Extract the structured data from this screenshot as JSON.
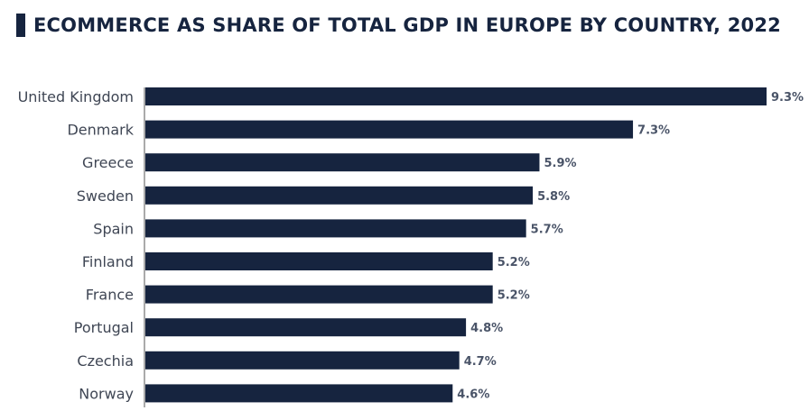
{
  "chart_data": {
    "type": "bar",
    "orientation": "horizontal",
    "title": "ECOMMERCE AS SHARE OF TOTAL GDP IN EUROPE BY COUNTRY, 2022",
    "categories": [
      "United Kingdom",
      "Denmark",
      "Greece",
      "Sweden",
      "Spain",
      "Finland",
      "France",
      "Portugal",
      "Czechia",
      "Norway"
    ],
    "values": [
      9.3,
      7.3,
      5.9,
      5.8,
      5.7,
      5.2,
      5.2,
      4.8,
      4.7,
      4.6
    ],
    "value_labels": [
      "9.3%",
      "7.3%",
      "5.9%",
      "5.8%",
      "5.7%",
      "5.2%",
      "5.2%",
      "4.8%",
      "4.7%",
      "4.6%"
    ],
    "xlim": [
      0,
      9.3
    ],
    "xlabel": "",
    "ylabel": "",
    "grid": false,
    "legend": "none",
    "colors": {
      "bar": "#16243f",
      "title": "#16243f",
      "category_text": "#3f4654",
      "value_text": "#4a5468",
      "axis": "#555555"
    }
  }
}
